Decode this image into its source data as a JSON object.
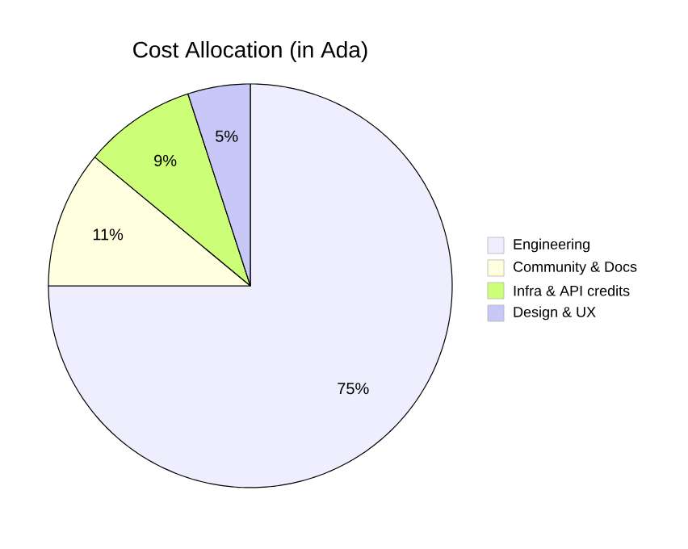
{
  "chart_data": {
    "type": "pie",
    "title": "Cost Allocation (in Ada)",
    "categories": [
      "Engineering",
      "Community & Docs",
      "Infra & API credits",
      "Design & UX"
    ],
    "values": [
      75,
      11,
      9,
      5
    ],
    "colors": [
      "#eeeeff",
      "#ffffe0",
      "#ccff77",
      "#c8c8f8"
    ],
    "value_labels": [
      "75%",
      "11%",
      "9%",
      "5%"
    ],
    "legend": "right"
  }
}
